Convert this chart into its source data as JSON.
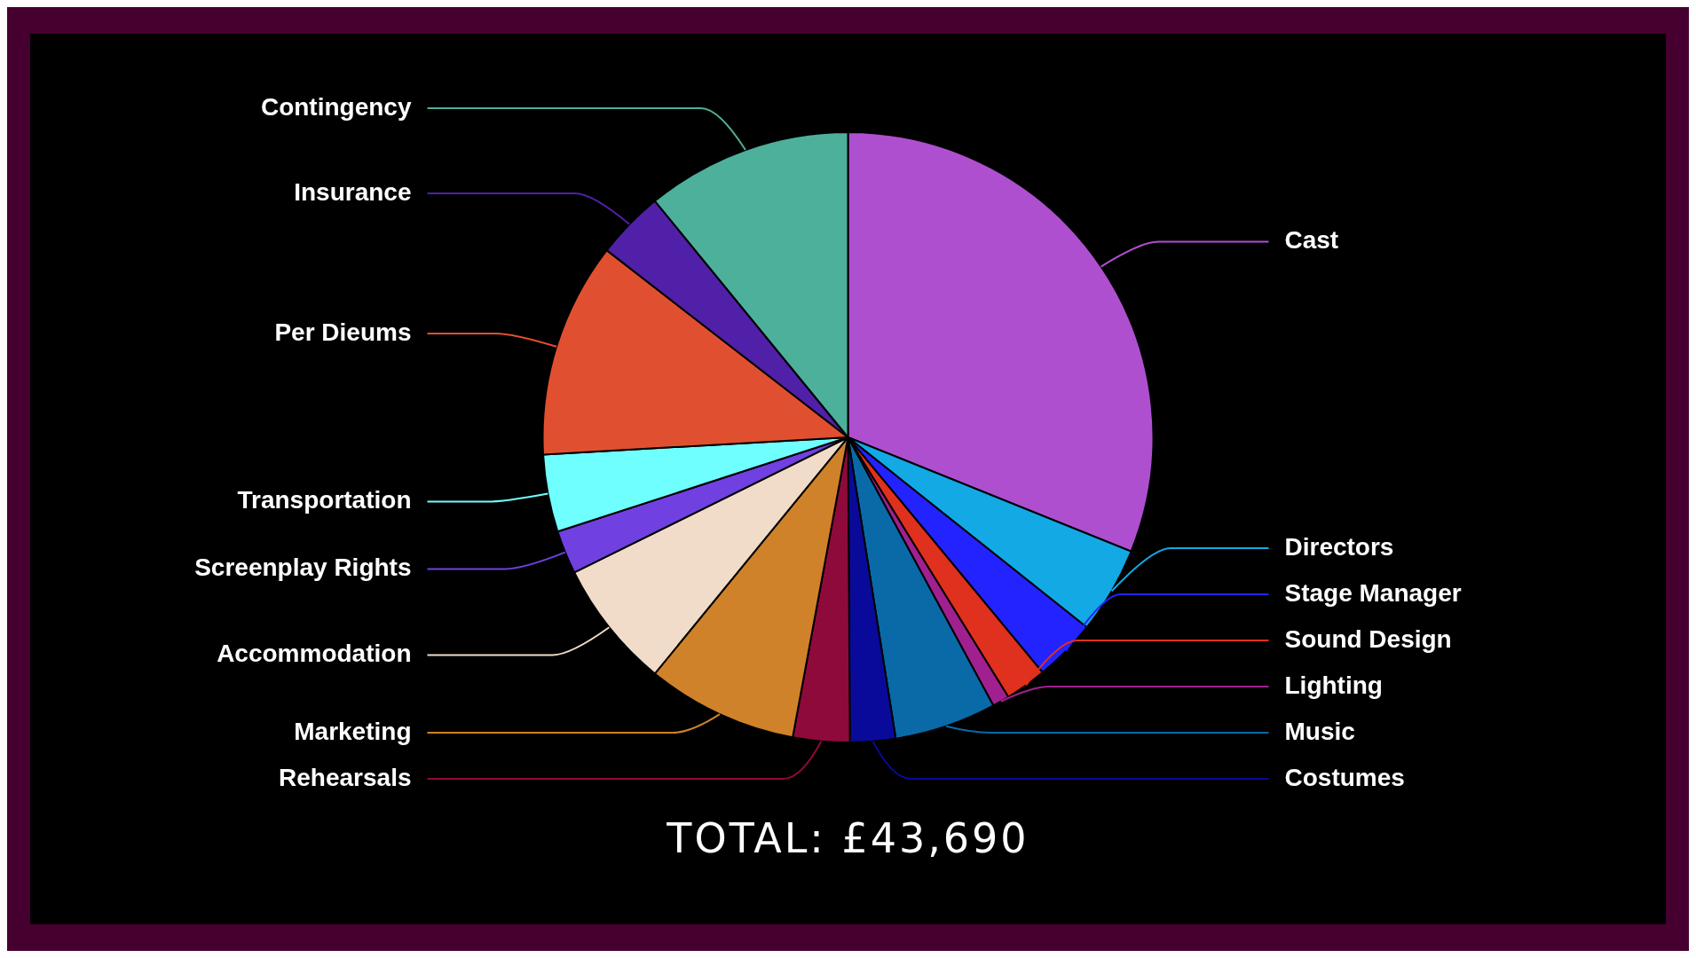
{
  "chart_data": {
    "type": "pie",
    "categories": [
      "Cast",
      "Directors",
      "Stage Manager",
      "Sound Design",
      "Lighting",
      "Music",
      "Costumes",
      "Rehearsals",
      "Marketing",
      "Accommodation",
      "Screenplay Rights",
      "Transportation",
      "Per Dieums",
      "Insurance",
      "Contingency"
    ],
    "values": [
      31.1,
      4.6,
      3.3,
      2.2,
      0.9,
      5.4,
      2.4,
      3.0,
      8.0,
      6.8,
      2.3,
      4.1,
      11.4,
      3.6,
      10.9
    ],
    "colors": [
      "#ae4fd0",
      "#13a9e5",
      "#2323ff",
      "#e0301e",
      "#a0208f",
      "#0a6aa8",
      "#0a0a9a",
      "#8e0a3a",
      "#d0822a",
      "#f0dcc8",
      "#7040e0",
      "#70ffff",
      "#e05030",
      "#5020a8",
      "#4db09b"
    ],
    "annotations": [
      "TOTAL: £43,690"
    ],
    "legend": false
  }
}
